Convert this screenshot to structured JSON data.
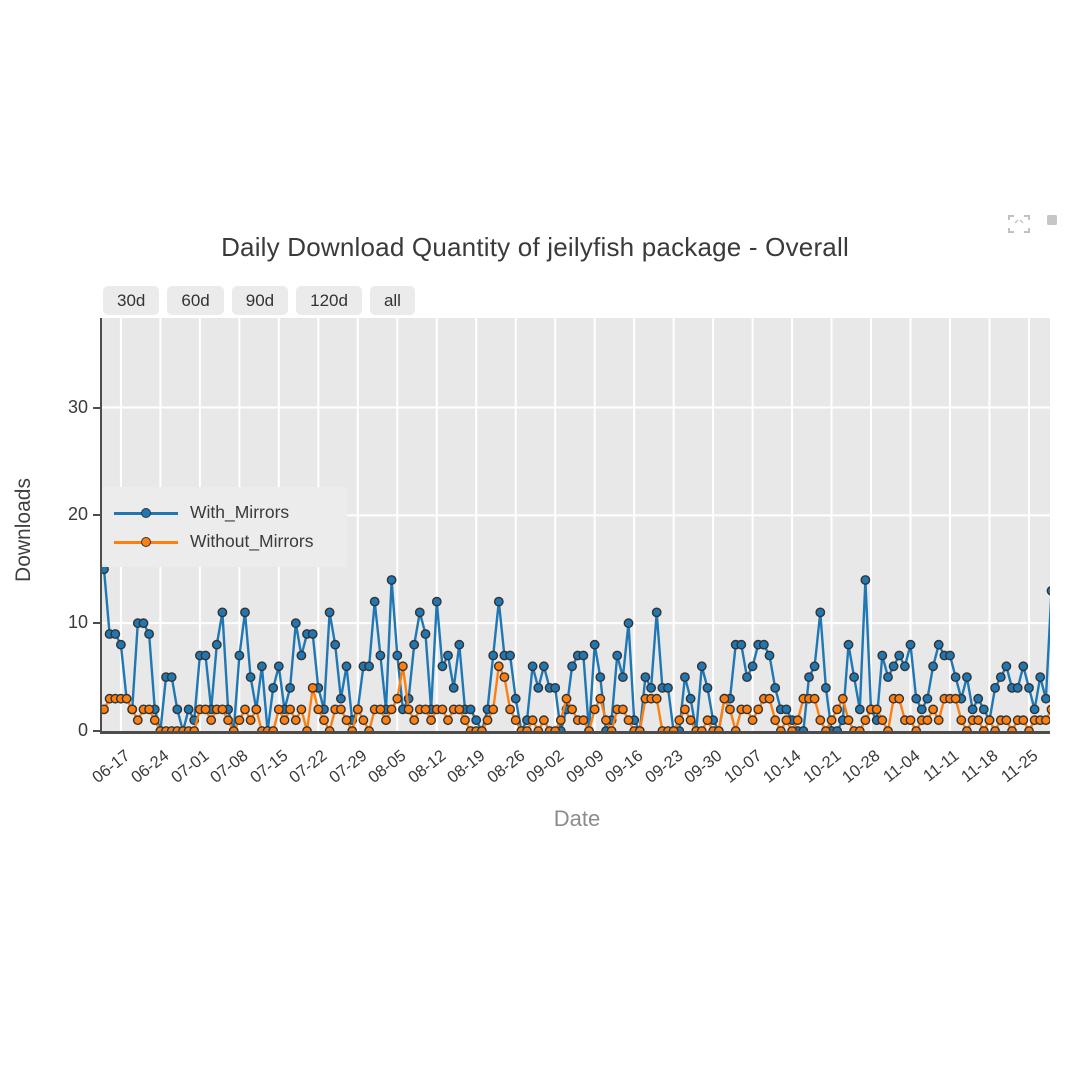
{
  "page": {
    "title": "Daily Download Quantity of jeilyfish package - Overall"
  },
  "toolbar": {
    "icons": [
      "expand-icon",
      "plot-badge-icon"
    ],
    "icon_color": "#a9a9a9"
  },
  "controls": {
    "range_buttons": [
      "30d",
      "60d",
      "90d",
      "120d",
      "all"
    ]
  },
  "chart_data": {
    "type": "line",
    "title": "Daily Download Quantity of jeilyfish package - Overall",
    "xlabel": "Date",
    "ylabel": "Downloads",
    "plot_bg": "#e8e8e8",
    "grid": true,
    "grid_color": "#ffffff",
    "marker_edge_color": "#333333",
    "ylim": [
      0,
      38.3
    ],
    "yticks": [
      0,
      10,
      20,
      30
    ],
    "x_tick_labels": [
      "06-17",
      "06-24",
      "07-01",
      "07-08",
      "07-15",
      "07-22",
      "07-29",
      "08-05",
      "08-12",
      "08-19",
      "08-26",
      "09-02",
      "09-09",
      "09-16",
      "09-23",
      "09-30",
      "10-07",
      "10-14",
      "10-21",
      "10-28",
      "11-04",
      "11-11",
      "11-18",
      "11-25"
    ],
    "legend_position": "center-left",
    "dates": [
      "06-14",
      "06-15",
      "06-16",
      "06-17",
      "06-18",
      "06-19",
      "06-20",
      "06-21",
      "06-22",
      "06-23",
      "06-24",
      "06-25",
      "06-26",
      "06-27",
      "06-28",
      "06-29",
      "06-30",
      "07-01",
      "07-02",
      "07-03",
      "07-04",
      "07-05",
      "07-06",
      "07-07",
      "07-08",
      "07-09",
      "07-10",
      "07-11",
      "07-12",
      "07-13",
      "07-14",
      "07-15",
      "07-16",
      "07-17",
      "07-18",
      "07-19",
      "07-20",
      "07-21",
      "07-22",
      "07-23",
      "07-24",
      "07-25",
      "07-26",
      "07-27",
      "07-28",
      "07-29",
      "07-30",
      "07-31",
      "08-01",
      "08-02",
      "08-03",
      "08-04",
      "08-05",
      "08-06",
      "08-07",
      "08-08",
      "08-09",
      "08-10",
      "08-11",
      "08-12",
      "08-13",
      "08-14",
      "08-15",
      "08-16",
      "08-17",
      "08-18",
      "08-19",
      "08-20",
      "08-21",
      "08-22",
      "08-23",
      "08-24",
      "08-25",
      "08-26",
      "08-27",
      "08-28",
      "08-29",
      "08-30",
      "08-31",
      "09-01",
      "09-02",
      "09-03",
      "09-04",
      "09-05",
      "09-06",
      "09-07",
      "09-08",
      "09-09",
      "09-10",
      "09-11",
      "09-12",
      "09-13",
      "09-14",
      "09-15",
      "09-16",
      "09-17",
      "09-18",
      "09-19",
      "09-20",
      "09-21",
      "09-22",
      "09-23",
      "09-24",
      "09-25",
      "09-26",
      "09-27",
      "09-28",
      "09-29",
      "09-30",
      "10-01",
      "10-02",
      "10-03",
      "10-04",
      "10-05",
      "10-06",
      "10-07",
      "10-08",
      "10-09",
      "10-10",
      "10-11",
      "10-12",
      "10-13",
      "10-14",
      "10-15",
      "10-16",
      "10-17",
      "10-18",
      "10-19",
      "10-20",
      "10-21",
      "10-22",
      "10-23",
      "10-24",
      "10-25",
      "10-26",
      "10-27",
      "10-28",
      "10-29",
      "10-30",
      "10-31",
      "11-01",
      "11-02",
      "11-03",
      "11-04",
      "11-05",
      "11-06",
      "11-07",
      "11-08",
      "11-09",
      "11-10",
      "11-11",
      "11-12",
      "11-13",
      "11-14",
      "11-15",
      "11-16",
      "11-17",
      "11-18",
      "11-19",
      "11-20",
      "11-21",
      "11-22",
      "11-23",
      "11-24",
      "11-25",
      "11-26",
      "11-27",
      "11-28",
      "11-29"
    ],
    "series": [
      {
        "name": "With_Mirrors",
        "color": "#1f77b4",
        "values": [
          15,
          9,
          9,
          8,
          3,
          2,
          10,
          10,
          9,
          2,
          0,
          5,
          5,
          2,
          0,
          2,
          1,
          7,
          7,
          2,
          8,
          11,
          2,
          0,
          7,
          11,
          5,
          2,
          6,
          0,
          4,
          6,
          2,
          4,
          10,
          7,
          9,
          9,
          4,
          2,
          11,
          8,
          3,
          6,
          1,
          2,
          6,
          6,
          12,
          7,
          2,
          14,
          7,
          2,
          3,
          8,
          11,
          9,
          2,
          12,
          6,
          7,
          4,
          8,
          2,
          2,
          1,
          0,
          2,
          7,
          12,
          7,
          7,
          3,
          0,
          1,
          6,
          4,
          6,
          4,
          4,
          0,
          2,
          6,
          7,
          7,
          0,
          8,
          5,
          0,
          1,
          7,
          5,
          10,
          1,
          0,
          5,
          4,
          11,
          4,
          4,
          0,
          0,
          5,
          3,
          0,
          6,
          4,
          1,
          0,
          3,
          3,
          8,
          8,
          5,
          6,
          8,
          8,
          7,
          4,
          2,
          2,
          1,
          0,
          0,
          5,
          6,
          11,
          4,
          0,
          0,
          1,
          8,
          5,
          2,
          14,
          2,
          1,
          7,
          5,
          6,
          7,
          6,
          8,
          3,
          2,
          3,
          6,
          8,
          7,
          7,
          5,
          3,
          5,
          2,
          3,
          2,
          1,
          4,
          5,
          6,
          4,
          4,
          6,
          4,
          2,
          5,
          3,
          13
        ]
      },
      {
        "name": "Without_Mirrors",
        "color": "#ff7f0e",
        "values": [
          2,
          3,
          3,
          3,
          3,
          2,
          1,
          2,
          2,
          1,
          0,
          0,
          0,
          0,
          0,
          0,
          0,
          2,
          2,
          1,
          2,
          2,
          1,
          0,
          1,
          2,
          1,
          2,
          0,
          0,
          0,
          2,
          1,
          2,
          1,
          2,
          0,
          4,
          2,
          1,
          0,
          2,
          2,
          1,
          0,
          2,
          1,
          0,
          2,
          2,
          1,
          2,
          3,
          6,
          2,
          1,
          2,
          2,
          1,
          2,
          2,
          1,
          2,
          2,
          1,
          0,
          0,
          0,
          1,
          2,
          6,
          5,
          2,
          1,
          0,
          0,
          1,
          0,
          1,
          0,
          0,
          1,
          3,
          2,
          1,
          1,
          0,
          2,
          3,
          1,
          0,
          2,
          2,
          1,
          0,
          0,
          3,
          3,
          3,
          0,
          0,
          0,
          1,
          2,
          1,
          0,
          0,
          1,
          0,
          0,
          3,
          2,
          0,
          2,
          2,
          1,
          2,
          3,
          3,
          1,
          0,
          1,
          0,
          1,
          3,
          3,
          3,
          1,
          0,
          1,
          2,
          3,
          1,
          0,
          0,
          1,
          2,
          2,
          1,
          0,
          3,
          3,
          1,
          1,
          0,
          1,
          1,
          2,
          1,
          3,
          3,
          3,
          1,
          0,
          1,
          1,
          0,
          1,
          0,
          1,
          1,
          0,
          1,
          1,
          0,
          1,
          1,
          1,
          2
        ]
      }
    ]
  }
}
